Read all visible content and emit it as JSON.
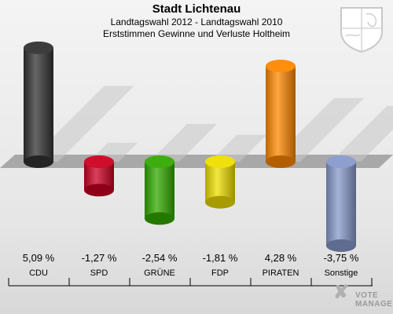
{
  "header": {
    "title": "Stadt Lichtenau",
    "subtitle": "Landtagswahl 2012 - Landtagswahl 2010",
    "description": "Erststimmen Gewinne und Verluste Holtheim"
  },
  "logo": {
    "line1": "VOTE",
    "line2": "MANAGER"
  },
  "chart_data": {
    "type": "bar",
    "title": "Stadt Lichtenau",
    "subtitle": "Landtagswahl 2012 - Landtagswahl 2010",
    "description": "Erststimmen Gewinne und Verluste Holtheim",
    "categories": [
      "CDU",
      "SPD",
      "GRÜNE",
      "FDP",
      "PIRATEN",
      "Sonstige"
    ],
    "values": [
      5.09,
      -1.27,
      -2.54,
      -1.81,
      4.28,
      -3.75
    ],
    "value_labels": [
      "5,09 %",
      "-1,27 %",
      "-2,54 %",
      "-1,81 %",
      "4,28 %",
      "-3,75 %"
    ],
    "colors": [
      "#333333",
      "#cc0022",
      "#33aa00",
      "#eedd00",
      "#ff8800",
      "#8899cc"
    ],
    "ylim": [
      -4,
      6
    ],
    "grid": false,
    "legend": "none"
  }
}
